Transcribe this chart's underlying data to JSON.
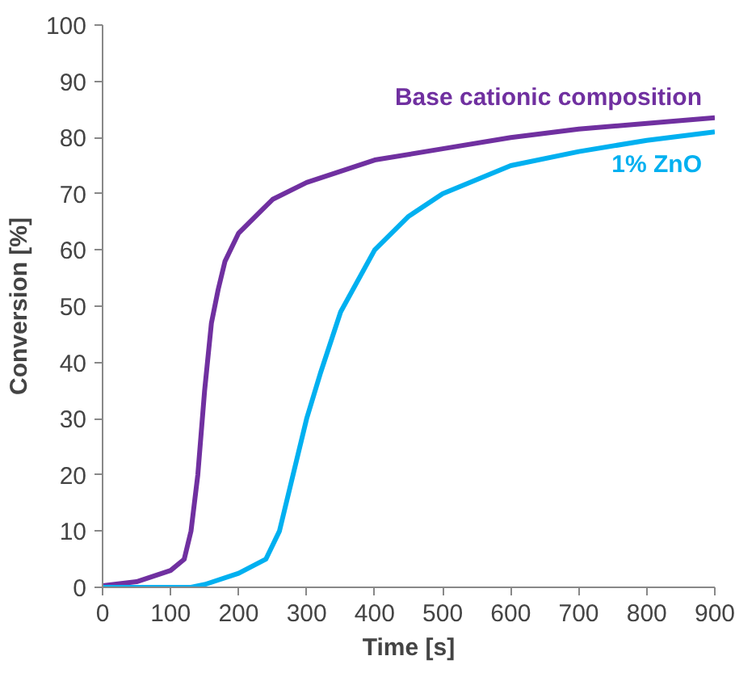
{
  "chart_data": {
    "type": "line",
    "xlabel": "Time [s]",
    "ylabel": "Conversion [%]",
    "xlim": [
      0,
      900
    ],
    "ylim": [
      0,
      100
    ],
    "xticks": [
      0,
      100,
      200,
      300,
      400,
      500,
      600,
      700,
      800,
      900
    ],
    "yticks": [
      0,
      10,
      20,
      30,
      40,
      50,
      60,
      70,
      80,
      90,
      100
    ],
    "grid": false,
    "series": [
      {
        "name": "Base cationic composition",
        "color": "#7030a0",
        "x": [
          0,
          50,
          100,
          120,
          130,
          140,
          150,
          160,
          170,
          180,
          200,
          250,
          300,
          400,
          500,
          600,
          700,
          800,
          900
        ],
        "values": [
          0.3,
          1,
          3,
          5,
          10,
          20,
          35,
          47,
          53,
          58,
          63,
          69,
          72,
          76,
          78,
          80,
          81.5,
          82.5,
          83.5
        ]
      },
      {
        "name": "1% ZnO",
        "color": "#00b0f0",
        "x": [
          0,
          100,
          130,
          150,
          200,
          240,
          260,
          280,
          300,
          320,
          350,
          400,
          450,
          500,
          600,
          700,
          800,
          900
        ],
        "values": [
          0,
          0,
          0,
          0.5,
          2.5,
          5,
          10,
          20,
          30,
          38,
          49,
          60,
          66,
          70,
          75,
          77.5,
          79.5,
          81
        ]
      }
    ]
  }
}
